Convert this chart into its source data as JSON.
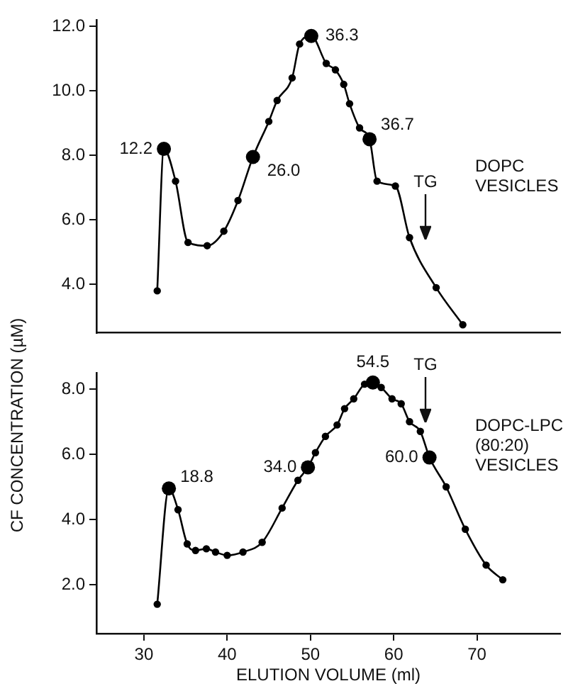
{
  "chart_data": [
    {
      "type": "line",
      "xlim": [
        24.3,
        80
      ],
      "xticks": [
        30,
        40,
        50,
        60,
        70
      ],
      "ylim": [
        2.5,
        12.2
      ],
      "yticks": [
        {
          "value": 4,
          "label": "4.0"
        },
        {
          "value": 6,
          "label": "6.0"
        },
        {
          "value": 8,
          "label": "8.0"
        },
        {
          "value": 10,
          "label": "10.0"
        },
        {
          "value": 12,
          "label": "12.0"
        }
      ],
      "ylabel": "CF CONCENTRATION (µM)",
      "tick_labels": "y",
      "marker": "circle",
      "series": [
        {
          "name": "DOPC VESICLES",
          "color": "#000000",
          "x": [
            31.6,
            32.4,
            33.8,
            35.3,
            37.6,
            39.6,
            41.3,
            43.1,
            45.0,
            46.0,
            47.8,
            48.7,
            50.1,
            51.9,
            53.0,
            54.0,
            54.7,
            55.9,
            57.1,
            58.0,
            60.2,
            61.9,
            65.1,
            68.3
          ],
          "values": [
            3.8,
            8.2,
            7.2,
            5.3,
            5.2,
            5.65,
            6.6,
            7.95,
            9.05,
            9.7,
            10.4,
            11.45,
            11.7,
            10.85,
            10.65,
            10.2,
            9.6,
            8.85,
            8.5,
            7.2,
            7.05,
            5.45,
            3.9,
            2.75
          ]
        }
      ],
      "annotations": [
        {
          "text": "12.2",
          "x": 32.4,
          "y": 8.2
        },
        {
          "text": "26.0",
          "x": 43.1,
          "y": 7.95
        },
        {
          "text": "36.3",
          "x": 50.1,
          "y": 11.7
        },
        {
          "text": "36.7",
          "x": 57.1,
          "y": 8.5
        },
        "TG"
      ]
    },
    {
      "type": "line",
      "xlabel": "ELUTION VOLUME (ml)",
      "xlim": [
        24.3,
        80
      ],
      "ylim": [
        0.5,
        8.5
      ],
      "xticks": [
        30,
        40,
        50,
        60,
        70
      ],
      "yticks": [
        {
          "value": 2,
          "label": "2.0"
        },
        {
          "value": 4,
          "label": "4.0"
        },
        {
          "value": 6,
          "label": "6.0"
        },
        {
          "value": 8,
          "label": "8.0"
        }
      ],
      "marker": "circle",
      "series": [
        {
          "name": "DOPC-LPC (80:20) VESICLES",
          "color": "#000000",
          "x": [
            31.6,
            33.0,
            34.1,
            35.2,
            36.2,
            37.5,
            38.6,
            40.0,
            41.9,
            44.2,
            46.6,
            48.5,
            49.7,
            50.6,
            51.8,
            53.2,
            54.1,
            55.2,
            56.5,
            57.5,
            58.5,
            59.8,
            60.9,
            61.9,
            63.2,
            64.3,
            66.3,
            68.6,
            71.1,
            73.1
          ],
          "values": [
            1.4,
            4.95,
            4.3,
            3.25,
            3.05,
            3.1,
            3.0,
            2.9,
            3.0,
            3.3,
            4.35,
            5.2,
            5.6,
            6.05,
            6.55,
            6.9,
            7.4,
            7.7,
            8.15,
            8.2,
            8.05,
            7.7,
            7.55,
            7.0,
            6.7,
            5.9,
            5.0,
            3.7,
            2.6,
            2.15
          ]
        }
      ],
      "annotations": [
        {
          "text": "18.8",
          "x": 33.0,
          "y": 4.95
        },
        {
          "text": "34.0",
          "x": 49.7,
          "y": 5.6
        },
        {
          "text": "54.5",
          "x": 57.5,
          "y": 8.2
        },
        {
          "text": "60.0",
          "x": 64.3,
          "y": 5.9
        },
        "TG"
      ]
    }
  ]
}
